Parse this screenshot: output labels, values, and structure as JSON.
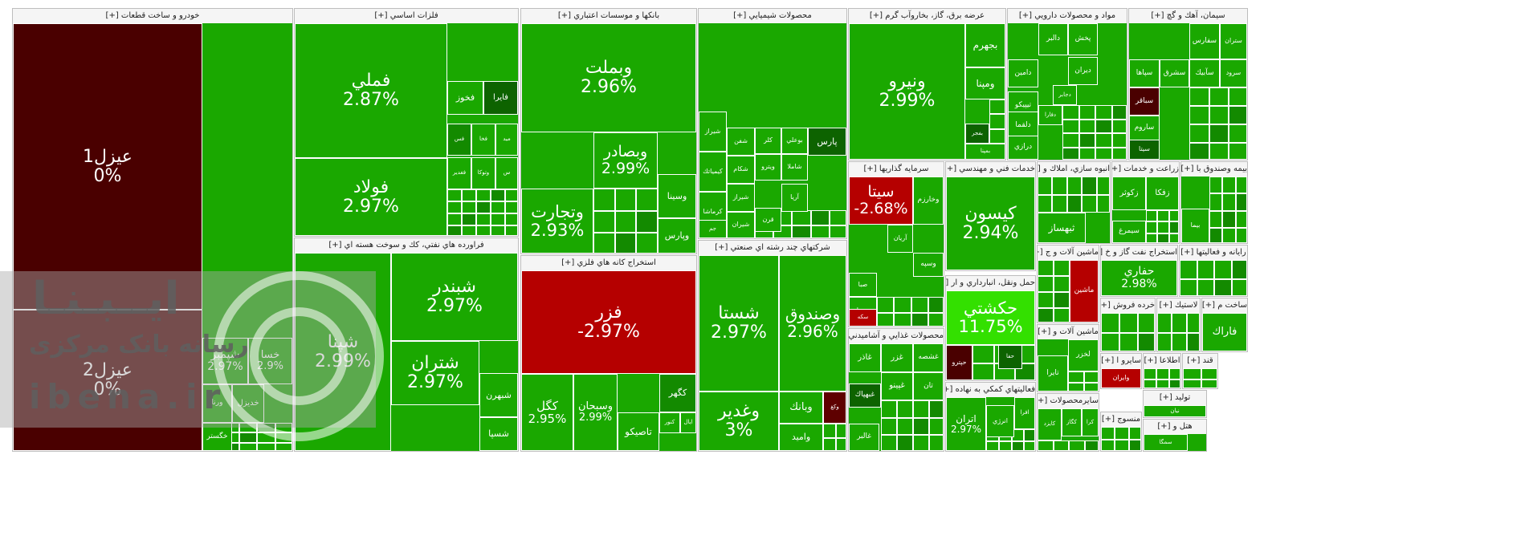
{
  "colors": {
    "strong_up": "#1aa800",
    "mid_up": "#138a00",
    "dark_up": "#0d6300",
    "bright_up": "#33e000",
    "down": "#b50000",
    "strong_down": "#4a0000",
    "dark_down": "#5e0000"
  },
  "watermark": {
    "line1": "ایــبـنـا",
    "line2": "رسانه بانک مرکزی",
    "line3": "ibena.ir"
  },
  "chart_data": {
    "type": "treemap",
    "title": "",
    "sectors": [
      {
        "name": "خودرو و ساخت قطعات [+]",
        "tiles": [
          {
            "name": "عيزل1",
            "change": "0%",
            "tone": "strong_down"
          },
          {
            "name": "عيزل2",
            "change": "0%",
            "tone": "strong_down"
          },
          {
            "name": "شپمبر",
            "change": "2.97%",
            "tone": "strong_up"
          },
          {
            "name": "خسا",
            "change": "2.9%",
            "tone": "strong_up"
          },
          {
            "name": "ورنا",
            "change": "",
            "tone": "strong_up"
          },
          {
            "name": "خديزل",
            "change": "",
            "tone": "strong_up"
          },
          {
            "name": "خگستر",
            "change": "",
            "tone": "strong_up"
          }
        ]
      },
      {
        "name": "فلزات اساسي [+]",
        "tiles": [
          {
            "name": "فملي",
            "change": "2.87%",
            "tone": "strong_up"
          },
          {
            "name": "فولاد",
            "change": "2.97%",
            "tone": "strong_up"
          },
          {
            "name": "فخوز",
            "change": "",
            "tone": "strong_up"
          },
          {
            "name": "فايرا",
            "change": "",
            "tone": "dark_up"
          },
          {
            "name": "فس",
            "change": "",
            "tone": "mid_up"
          },
          {
            "name": "فخا",
            "change": "",
            "tone": "strong_up"
          },
          {
            "name": "ميد",
            "change": "",
            "tone": "strong_up"
          },
          {
            "name": "فغدير",
            "change": "",
            "tone": "strong_up"
          },
          {
            "name": "وتوكا",
            "change": "",
            "tone": "strong_up"
          },
          {
            "name": "س",
            "change": "",
            "tone": "strong_up"
          }
        ]
      },
      {
        "name": "فراورده هاي نفتي، كك و سوخت هسته اي [+]",
        "tiles": [
          {
            "name": "شپنا",
            "change": "2.99%",
            "tone": "strong_up"
          },
          {
            "name": "شبندر",
            "change": "2.97%",
            "tone": "strong_up"
          },
          {
            "name": "شتران",
            "change": "2.97%",
            "tone": "strong_up"
          },
          {
            "name": "شبهرن",
            "change": "",
            "tone": "strong_up"
          },
          {
            "name": "شسپا",
            "change": "",
            "tone": "strong_up"
          }
        ]
      },
      {
        "name": "بانكها و موسسات اعتباري [+]",
        "tiles": [
          {
            "name": "وبملت",
            "change": "2.96%",
            "tone": "strong_up"
          },
          {
            "name": "وبصادر",
            "change": "2.99%",
            "tone": "strong_up"
          },
          {
            "name": "وتجارت",
            "change": "2.93%",
            "tone": "strong_up"
          },
          {
            "name": "وسينا",
            "change": "",
            "tone": "strong_up"
          },
          {
            "name": "وپارس",
            "change": "",
            "tone": "strong_up"
          }
        ]
      },
      {
        "name": "استخراج كانه هاي فلزي [+]",
        "tiles": [
          {
            "name": "فزر",
            "change": "-2.97%",
            "tone": "down"
          },
          {
            "name": "كگل",
            "change": "2.95%",
            "tone": "strong_up"
          },
          {
            "name": "وسبحان",
            "change": "2.99%",
            "tone": "strong_up"
          },
          {
            "name": "كگهر",
            "change": "",
            "tone": "mid_up"
          },
          {
            "name": "كنور",
            "change": "",
            "tone": "strong_up"
          },
          {
            "name": "ايال",
            "change": "",
            "tone": "strong_up"
          },
          {
            "name": "تاصيكو",
            "change": "",
            "tone": "strong_up"
          }
        ]
      },
      {
        "name": "محصولات شيميايي [+]",
        "tiles": [
          {
            "name": "شيراز",
            "change": "",
            "tone": "strong_up"
          },
          {
            "name": "شفن",
            "change": "",
            "tone": "strong_up"
          },
          {
            "name": "كلر",
            "change": "",
            "tone": "strong_up"
          },
          {
            "name": "بوعلي",
            "change": "",
            "tone": "strong_up"
          },
          {
            "name": "پارس",
            "change": "",
            "tone": "dark_up"
          },
          {
            "name": "كيمياتك",
            "change": "",
            "tone": "strong_up"
          },
          {
            "name": "شكام",
            "change": "",
            "tone": "strong_up"
          },
          {
            "name": "ويترو",
            "change": "",
            "tone": "strong_up"
          },
          {
            "name": "شاملا",
            "change": "",
            "tone": "strong_up"
          },
          {
            "name": "كرماشا",
            "change": "",
            "tone": "strong_up"
          },
          {
            "name": "شيراز",
            "change": "",
            "tone": "strong_up"
          },
          {
            "name": "جم",
            "change": "",
            "tone": "strong_up"
          },
          {
            "name": "شيران",
            "change": "",
            "tone": "strong_up"
          },
          {
            "name": "قرن",
            "change": "",
            "tone": "strong_up"
          },
          {
            "name": "آريا",
            "change": "",
            "tone": "strong_up"
          }
        ]
      },
      {
        "name": "شركتهاي چند رشته اي صنعتي [+]",
        "tiles": [
          {
            "name": "شستا",
            "change": "2.97%",
            "tone": "strong_up"
          },
          {
            "name": "وصندوق",
            "change": "2.96%",
            "tone": "strong_up"
          },
          {
            "name": "وغدير",
            "change": "3%",
            "tone": "strong_up"
          },
          {
            "name": "وبانك",
            "change": "",
            "tone": "strong_up"
          },
          {
            "name": "وكغ",
            "change": "",
            "tone": "dark_down"
          },
          {
            "name": "واميد",
            "change": "",
            "tone": "strong_up"
          }
        ]
      },
      {
        "name": "عرضه برق، گاز، بخاروآب گرم [+]",
        "tiles": [
          {
            "name": "ونيرو",
            "change": "2.99%",
            "tone": "strong_up"
          },
          {
            "name": "بجهرم",
            "change": "",
            "tone": "strong_up"
          },
          {
            "name": "ومپنا",
            "change": "",
            "tone": "strong_up"
          },
          {
            "name": "بفجر",
            "change": "",
            "tone": "dark_up"
          },
          {
            "name": "بمپنا",
            "change": "",
            "tone": "strong_up"
          }
        ]
      },
      {
        "name": "مواد و محصولات دارويي [+]",
        "tiles": [
          {
            "name": "دالبر",
            "change": "",
            "tone": "strong_up"
          },
          {
            "name": "پخش",
            "change": "",
            "tone": "strong_up"
          },
          {
            "name": "دامين",
            "change": "",
            "tone": "strong_up"
          },
          {
            "name": "تيپيكو",
            "change": "",
            "tone": "strong_up"
          },
          {
            "name": "دلقما",
            "change": "",
            "tone": "strong_up"
          },
          {
            "name": "درازي",
            "change": "",
            "tone": "strong_up"
          },
          {
            "name": "ديران",
            "change": "",
            "tone": "strong_up"
          },
          {
            "name": "دجابر",
            "change": "",
            "tone": "strong_up"
          },
          {
            "name": "دفارا",
            "change": "",
            "tone": "strong_up"
          }
        ]
      },
      {
        "name": "سيمان، آهك و گچ [+]",
        "tiles": [
          {
            "name": "ستران",
            "change": "",
            "tone": "strong_up"
          },
          {
            "name": "سفارس",
            "change": "",
            "tone": "strong_up"
          },
          {
            "name": "سرود",
            "change": "",
            "tone": "strong_up"
          },
          {
            "name": "سآبيك",
            "change": "",
            "tone": "strong_up"
          },
          {
            "name": "سپاها",
            "change": "",
            "tone": "strong_up"
          },
          {
            "name": "سشرق",
            "change": "",
            "tone": "strong_up"
          },
          {
            "name": "سباقر",
            "change": "",
            "tone": "strong_down"
          },
          {
            "name": "ساروم",
            "change": "",
            "tone": "strong_up"
          },
          {
            "name": "سيتا",
            "change": "",
            "tone": "dark_up"
          }
        ]
      },
      {
        "name": "سرمايه گذاريها [+]",
        "tiles": [
          {
            "name": "سيتا",
            "change": "-2.68%",
            "tone": "down"
          },
          {
            "name": "وخارزم",
            "change": "",
            "tone": "strong_up"
          },
          {
            "name": "وسپه",
            "change": "",
            "tone": "strong_up"
          },
          {
            "name": "آريان",
            "change": "",
            "tone": "strong_up"
          },
          {
            "name": "صبا",
            "change": "",
            "tone": "strong_up"
          },
          {
            "name": "وصنا",
            "change": "",
            "tone": "strong_up"
          },
          {
            "name": "سكه",
            "change": "",
            "tone": "down"
          }
        ]
      },
      {
        "name": "خدمات فني و مهندسي [+]",
        "tiles": [
          {
            "name": "كيسون",
            "change": "2.94%",
            "tone": "strong_up"
          }
        ]
      },
      {
        "name": "حمل ونقل، انبارداري و ار [+]",
        "tiles": [
          {
            "name": "حكشتي",
            "change": "11.75%",
            "tone": "bright_up"
          },
          {
            "name": "حپترو",
            "change": "",
            "tone": "strong_down"
          },
          {
            "name": "حفا",
            "change": "",
            "tone": "dark_up"
          }
        ]
      },
      {
        "name": "محصولات غذايي و آشاميدني [+]",
        "tiles": [
          {
            "name": "غاذر",
            "change": "",
            "tone": "strong_up"
          },
          {
            "name": "غزر",
            "change": "",
            "tone": "strong_up"
          },
          {
            "name": "غشصه",
            "change": "",
            "tone": "strong_up"
          },
          {
            "name": "غپينو",
            "change": "",
            "tone": "strong_up"
          },
          {
            "name": "غبهپاك",
            "change": "",
            "tone": "dark_up"
          },
          {
            "name": "غالبر",
            "change": "",
            "tone": "strong_up"
          },
          {
            "name": "تان",
            "change": "",
            "tone": "strong_up"
          }
        ]
      },
      {
        "name": "فعاليتهاي كمكي به نهاده [+]",
        "tiles": [
          {
            "name": "اتران",
            "change": "2.97%",
            "tone": "strong_up"
          },
          {
            "name": "انرژي",
            "change": "",
            "tone": "strong_up"
          },
          {
            "name": "افرا",
            "change": "",
            "tone": "strong_up"
          }
        ]
      },
      {
        "name": "انبوه سازي، املاك و [+]",
        "tiles": [
          {
            "name": "ثبهساز",
            "change": "",
            "tone": "strong_up"
          }
        ]
      },
      {
        "name": "زراعت و خدمات [+]",
        "tiles": [
          {
            "name": "زكوثر",
            "change": "",
            "tone": "strong_up"
          },
          {
            "name": "زفكا",
            "change": "",
            "tone": "strong_up"
          },
          {
            "name": "سيمرغ",
            "change": "",
            "tone": "strong_up"
          }
        ]
      },
      {
        "name": "بيمه وصندوق با [+]",
        "tiles": [
          {
            "name": "بيما",
            "change": "",
            "tone": "strong_up"
          }
        ]
      },
      {
        "name": "ماشين آلات و ج [+]",
        "tiles": [
          {
            "name": "ماشين",
            "change": "",
            "tone": "down"
          }
        ]
      },
      {
        "name": "استخراج نفت گاز و خ [+]",
        "tiles": [
          {
            "name": "حفاري",
            "change": "2.98%",
            "tone": "strong_up"
          }
        ]
      },
      {
        "name": "رايانه و فعاليتها [+]",
        "tiles": []
      },
      {
        "name": "خرده فروش [+]",
        "tiles": []
      },
      {
        "name": "لاستيك [+]",
        "tiles": []
      },
      {
        "name": "ساخت م [+]",
        "tiles": [
          {
            "name": "فاراك",
            "change": "",
            "tone": "strong_up"
          }
        ]
      },
      {
        "name": "ماشين آلات و [+]",
        "tiles": [
          {
            "name": "تايرا",
            "change": "",
            "tone": "strong_up"
          },
          {
            "name": "لخزر",
            "change": "",
            "tone": "strong_up"
          }
        ]
      },
      {
        "name": "سايرو ا [+]",
        "tiles": [
          {
            "name": "وايران",
            "change": "",
            "tone": "down"
          }
        ]
      },
      {
        "name": "اطلاعا [+]",
        "tiles": []
      },
      {
        "name": "قند [+]",
        "tiles": []
      },
      {
        "name": "سايرمحصولات [+]",
        "tiles": [
          {
            "name": "كايزد",
            "change": "",
            "tone": "strong_up"
          },
          {
            "name": "كگاز",
            "change": "",
            "tone": "strong_up"
          },
          {
            "name": "كرا",
            "change": "",
            "tone": "strong_up"
          }
        ]
      },
      {
        "name": "توليد [+]",
        "tiles": [
          {
            "name": "نيان",
            "change": "",
            "tone": "strong_up"
          }
        ]
      },
      {
        "name": "منسوج [+]",
        "tiles": []
      },
      {
        "name": "هتل و [+]",
        "tiles": [
          {
            "name": "سمگا",
            "change": "",
            "tone": "strong_up"
          }
        ]
      }
    ]
  }
}
